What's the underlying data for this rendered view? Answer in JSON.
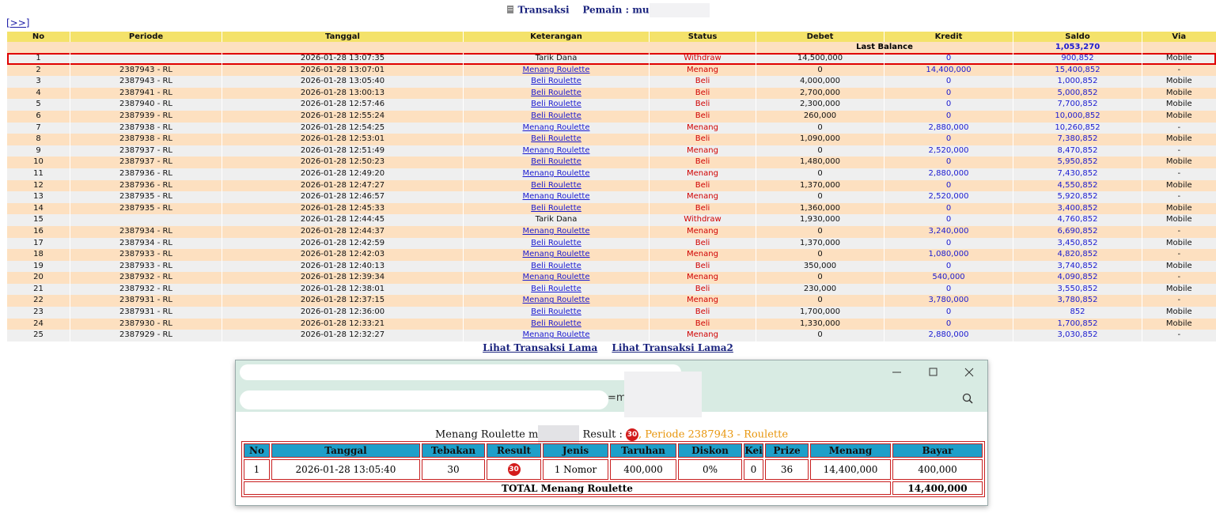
{
  "header": {
    "title": "Transaksi",
    "player": "Pemain : mu",
    "nav": "[>>]"
  },
  "table": {
    "columns": [
      "No",
      "Periode",
      "Tanggal",
      "Keterangan",
      "Status",
      "Debet",
      "Kredit",
      "Saldo",
      "Via"
    ],
    "last_balance": {
      "label": "Last Balance",
      "value": "1,053,270"
    },
    "rows": [
      [
        "1",
        null,
        "2026-01-28 13:07:35",
        "Tarik Dana",
        "Withdraw",
        "14,500,000",
        "0",
        "900,852",
        "Mobile"
      ],
      [
        "2",
        "2387943 - RL",
        "2026-01-28 13:07:01",
        "Menang Roulette",
        "Menang",
        "0",
        "14,400,000",
        "15,400,852",
        "-"
      ],
      [
        "3",
        "2387943 - RL",
        "2026-01-28 13:05:40",
        "Beli Roulette",
        "Beli",
        "4,000,000",
        "0",
        "1,000,852",
        "Mobile"
      ],
      [
        "4",
        "2387941 - RL",
        "2026-01-28 13:00:13",
        "Beli Roulette",
        "Beli",
        "2,700,000",
        "0",
        "5,000,852",
        "Mobile"
      ],
      [
        "5",
        "2387940 - RL",
        "2026-01-28 12:57:46",
        "Beli Roulette",
        "Beli",
        "2,300,000",
        "0",
        "7,700,852",
        "Mobile"
      ],
      [
        "6",
        "2387939 - RL",
        "2026-01-28 12:55:24",
        "Beli Roulette",
        "Beli",
        "260,000",
        "0",
        "10,000,852",
        "Mobile"
      ],
      [
        "7",
        "2387938 - RL",
        "2026-01-28 12:54:25",
        "Menang Roulette",
        "Menang",
        "0",
        "2,880,000",
        "10,260,852",
        "-"
      ],
      [
        "8",
        "2387938 - RL",
        "2026-01-28 12:53:01",
        "Beli Roulette",
        "Beli",
        "1,090,000",
        "0",
        "7,380,852",
        "Mobile"
      ],
      [
        "9",
        "2387937 - RL",
        "2026-01-28 12:51:49",
        "Menang Roulette",
        "Menang",
        "0",
        "2,520,000",
        "8,470,852",
        "-"
      ],
      [
        "10",
        "2387937 - RL",
        "2026-01-28 12:50:23",
        "Beli Roulette",
        "Beli",
        "1,480,000",
        "0",
        "5,950,852",
        "Mobile"
      ],
      [
        "11",
        "2387936 - RL",
        "2026-01-28 12:49:20",
        "Menang Roulette",
        "Menang",
        "0",
        "2,880,000",
        "7,430,852",
        "-"
      ],
      [
        "12",
        "2387936 - RL",
        "2026-01-28 12:47:27",
        "Beli Roulette",
        "Beli",
        "1,370,000",
        "0",
        "4,550,852",
        "Mobile"
      ],
      [
        "13",
        "2387935 - RL",
        "2026-01-28 12:46:57",
        "Menang Roulette",
        "Menang",
        "0",
        "2,520,000",
        "5,920,852",
        "-"
      ],
      [
        "14",
        "2387935 - RL",
        "2026-01-28 12:45:33",
        "Beli Roulette",
        "Beli",
        "1,360,000",
        "0",
        "3,400,852",
        "Mobile"
      ],
      [
        "15",
        null,
        "2026-01-28 12:44:45",
        "Tarik Dana",
        "Withdraw",
        "1,930,000",
        "0",
        "4,760,852",
        "Mobile"
      ],
      [
        "16",
        "2387934 - RL",
        "2026-01-28 12:44:37",
        "Menang Roulette",
        "Menang",
        "0",
        "3,240,000",
        "6,690,852",
        "-"
      ],
      [
        "17",
        "2387934 - RL",
        "2026-01-28 12:42:59",
        "Beli Roulette",
        "Beli",
        "1,370,000",
        "0",
        "3,450,852",
        "Mobile"
      ],
      [
        "18",
        "2387933 - RL",
        "2026-01-28 12:42:03",
        "Menang Roulette",
        "Menang",
        "0",
        "1,080,000",
        "4,820,852",
        "-"
      ],
      [
        "19",
        "2387933 - RL",
        "2026-01-28 12:40:13",
        "Beli Roulette",
        "Beli",
        "350,000",
        "0",
        "3,740,852",
        "Mobile"
      ],
      [
        "20",
        "2387932 - RL",
        "2026-01-28 12:39:34",
        "Menang Roulette",
        "Menang",
        "0",
        "540,000",
        "4,090,852",
        "-"
      ],
      [
        "21",
        "2387932 - RL",
        "2026-01-28 12:38:01",
        "Beli Roulette",
        "Beli",
        "230,000",
        "0",
        "3,550,852",
        "Mobile"
      ],
      [
        "22",
        "2387931 - RL",
        "2026-01-28 12:37:15",
        "Menang Roulette",
        "Menang",
        "0",
        "3,780,000",
        "3,780,852",
        "-"
      ],
      [
        "23",
        "2387931 - RL",
        "2026-01-28 12:36:00",
        "Beli Roulette",
        "Beli",
        "1,700,000",
        "0",
        "852",
        "Mobile"
      ],
      [
        "24",
        "2387930 - RL",
        "2026-01-28 12:33:21",
        "Beli Roulette",
        "Beli",
        "1,330,000",
        "0",
        "1,700,852",
        "Mobile"
      ],
      [
        "25",
        "2387929 - RL",
        "2026-01-28 12:32:27",
        "Menang Roulette",
        "Menang",
        "0",
        "2,880,000",
        "3,030,852",
        "-"
      ]
    ]
  },
  "links": [
    "Lihat Transaksi Lama",
    "Lihat Transaksi Lama2"
  ],
  "popup": {
    "address": "=m",
    "heading": "Menang Roulette m",
    "result_label": "Result :",
    "result_ball": "30",
    "periode": ", Periode 2387943 - Roulette",
    "table": {
      "columns": [
        "No",
        "Tanggal",
        "Tebakan",
        "Result",
        "Jenis",
        "Taruhan",
        "Diskon",
        "Kei",
        "Prize",
        "Menang",
        "Bayar"
      ],
      "rows": [
        [
          "1",
          "2026-01-28 13:05:40",
          "30",
          "30",
          "1 Nomor",
          "400,000",
          "0%",
          "0",
          "36",
          "14,400,000",
          "400,000"
        ]
      ],
      "total_label": "TOTAL  Menang Roulette",
      "total": "14,400,000"
    }
  }
}
